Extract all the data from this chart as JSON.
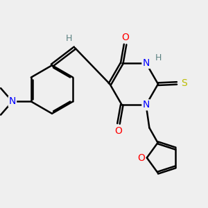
{
  "bg_color": "#efefef",
  "bond_color": "#000000",
  "bond_width": 1.8,
  "atom_colors": {
    "O": "#ff0000",
    "N": "#0000ff",
    "S": "#bbbb00",
    "H_gray": "#5a8080",
    "C": "#000000"
  },
  "figsize": [
    3.0,
    3.0
  ],
  "dpi": 100
}
